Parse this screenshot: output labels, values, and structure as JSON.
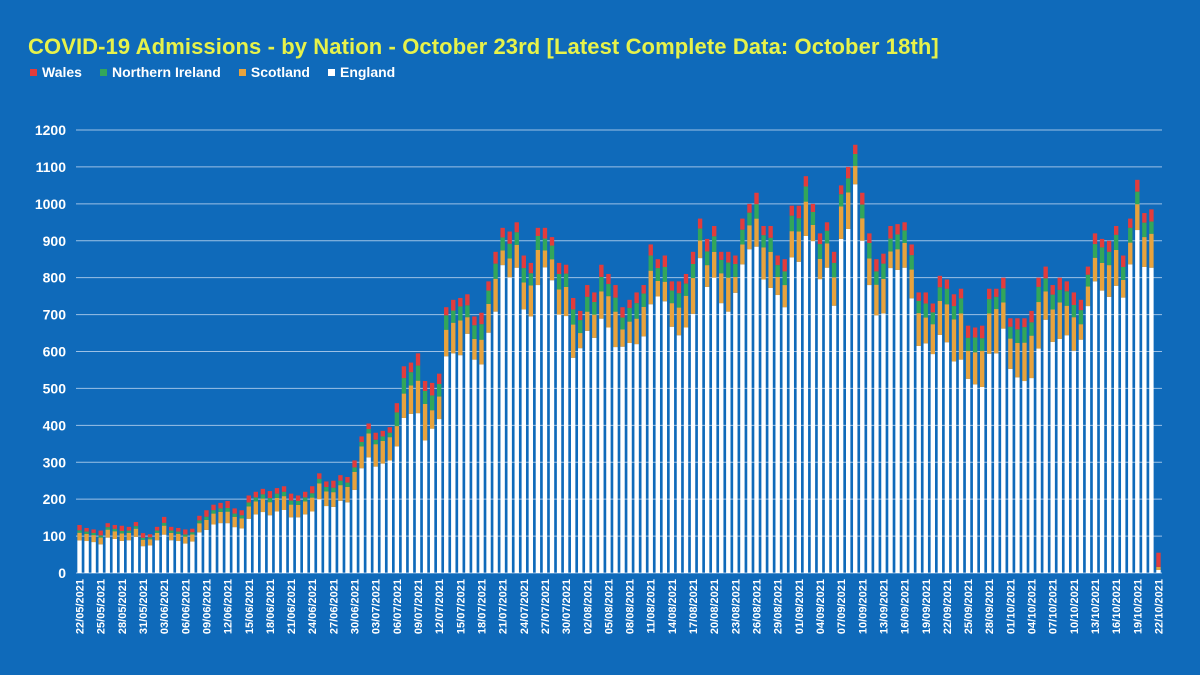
{
  "chart_data": {
    "type": "bar",
    "stacked": true,
    "title": "COVID-19 Admissions - by Nation - October 23rd [Latest Complete Data: October 18th]",
    "legend_position": "top-left",
    "grid": true,
    "ylim": [
      0,
      1200
    ],
    "yticks": [
      0,
      100,
      200,
      300,
      400,
      500,
      600,
      700,
      800,
      900,
      1000,
      1100,
      1200
    ],
    "colors": {
      "England": "#ffffff",
      "Scotland": "#e8a33d",
      "Northern Ireland": "#33a65a",
      "Wales": "#e23c3c"
    },
    "x": [
      "22/05/2021",
      "23/05/2021",
      "24/05/2021",
      "25/05/2021",
      "26/05/2021",
      "27/05/2021",
      "28/05/2021",
      "29/05/2021",
      "30/05/2021",
      "31/05/2021",
      "01/06/2021",
      "02/06/2021",
      "03/06/2021",
      "04/06/2021",
      "05/06/2021",
      "06/06/2021",
      "07/06/2021",
      "08/06/2021",
      "09/06/2021",
      "10/06/2021",
      "11/06/2021",
      "12/06/2021",
      "13/06/2021",
      "14/06/2021",
      "15/06/2021",
      "16/06/2021",
      "17/06/2021",
      "18/06/2021",
      "19/06/2021",
      "20/06/2021",
      "21/06/2021",
      "22/06/2021",
      "23/06/2021",
      "24/06/2021",
      "25/06/2021",
      "26/06/2021",
      "27/06/2021",
      "28/06/2021",
      "29/06/2021",
      "30/06/2021",
      "01/07/2021",
      "02/07/2021",
      "03/07/2021",
      "04/07/2021",
      "05/07/2021",
      "06/07/2021",
      "07/07/2021",
      "08/07/2021",
      "09/07/2021",
      "10/07/2021",
      "11/07/2021",
      "12/07/2021",
      "13/07/2021",
      "14/07/2021",
      "15/07/2021",
      "16/07/2021",
      "17/07/2021",
      "18/07/2021",
      "19/07/2021",
      "20/07/2021",
      "21/07/2021",
      "22/07/2021",
      "23/07/2021",
      "24/07/2021",
      "25/07/2021",
      "26/07/2021",
      "27/07/2021",
      "28/07/2021",
      "29/07/2021",
      "30/07/2021",
      "31/07/2021",
      "01/08/2021",
      "02/08/2021",
      "03/08/2021",
      "04/08/2021",
      "05/08/2021",
      "06/08/2021",
      "07/08/2021",
      "08/08/2021",
      "09/08/2021",
      "10/08/2021",
      "11/08/2021",
      "12/08/2021",
      "13/08/2021",
      "14/08/2021",
      "15/08/2021",
      "16/08/2021",
      "17/08/2021",
      "18/08/2021",
      "19/08/2021",
      "20/08/2021",
      "21/08/2021",
      "22/08/2021",
      "23/08/2021",
      "24/08/2021",
      "25/08/2021",
      "26/08/2021",
      "27/08/2021",
      "28/08/2021",
      "29/08/2021",
      "30/08/2021",
      "31/08/2021",
      "01/09/2021",
      "02/09/2021",
      "03/09/2021",
      "04/09/2021",
      "05/09/2021",
      "06/09/2021",
      "07/09/2021",
      "08/09/2021",
      "09/09/2021",
      "10/09/2021",
      "11/09/2021",
      "12/09/2021",
      "13/09/2021",
      "14/09/2021",
      "15/09/2021",
      "16/09/2021",
      "17/09/2021",
      "18/09/2021",
      "19/09/2021",
      "20/09/2021",
      "21/09/2021",
      "22/09/2021",
      "23/09/2021",
      "24/09/2021",
      "25/09/2021",
      "26/09/2021",
      "27/09/2021",
      "28/09/2021",
      "29/09/2021",
      "30/09/2021",
      "01/10/2021",
      "02/10/2021",
      "03/10/2021",
      "04/10/2021",
      "05/10/2021",
      "06/10/2021",
      "07/10/2021",
      "08/10/2021",
      "09/10/2021",
      "10/10/2021",
      "11/10/2021",
      "12/10/2021",
      "13/10/2021",
      "14/10/2021",
      "15/10/2021",
      "16/10/2021",
      "17/10/2021",
      "18/10/2021",
      "19/10/2021",
      "20/10/2021",
      "21/10/2021",
      "22/10/2021"
    ],
    "x_tick_labels": [
      "22/05/2021",
      "25/05/2021",
      "28/05/2021",
      "31/05/2021",
      "03/06/2021",
      "06/06/2021",
      "09/06/2021",
      "12/06/2021",
      "15/06/2021",
      "18/06/2021",
      "21/06/2021",
      "24/06/2021",
      "27/06/2021",
      "30/06/2021",
      "03/07/2021",
      "06/07/2021",
      "09/07/2021",
      "12/07/2021",
      "15/07/2021",
      "18/07/2021",
      "21/07/2021",
      "24/07/2021",
      "27/07/2021",
      "30/07/2021",
      "02/08/2021",
      "05/08/2021",
      "08/08/2021",
      "11/08/2021",
      "14/08/2021",
      "17/08/2021",
      "20/08/2021",
      "23/08/2021",
      "26/08/2021",
      "29/08/2021",
      "01/09/2021",
      "04/09/2021",
      "07/09/2021",
      "10/09/2021",
      "13/09/2021",
      "16/09/2021",
      "19/09/2021",
      "22/09/2021",
      "25/09/2021",
      "28/09/2021",
      "01/10/2021",
      "04/10/2021",
      "07/10/2021",
      "10/10/2021",
      "13/10/2021",
      "16/10/2021",
      "19/10/2021",
      "22/10/2021"
    ],
    "totals": [
      130,
      122,
      118,
      115,
      135,
      130,
      128,
      125,
      138,
      108,
      105,
      125,
      152,
      125,
      122,
      118,
      120,
      155,
      170,
      185,
      190,
      195,
      175,
      170,
      210,
      220,
      228,
      222,
      230,
      235,
      215,
      210,
      220,
      235,
      270,
      248,
      250,
      265,
      260,
      305,
      370,
      405,
      380,
      385,
      395,
      460,
      560,
      570,
      595,
      520,
      515,
      540,
      720,
      740,
      745,
      755,
      695,
      705,
      790,
      870,
      935,
      925,
      950,
      860,
      840,
      935,
      935,
      910,
      840,
      835,
      745,
      710,
      780,
      760,
      835,
      810,
      780,
      720,
      740,
      760,
      780,
      890,
      850,
      860,
      790,
      790,
      810,
      870,
      960,
      905,
      940,
      870,
      870,
      860,
      960,
      1000,
      1030,
      940,
      940,
      860,
      850,
      995,
      995,
      1075,
      1000,
      920,
      950,
      870,
      1050,
      1100,
      1160,
      1030,
      920,
      850,
      865,
      940,
      945,
      950,
      890,
      760,
      760,
      730,
      805,
      795,
      755,
      770,
      670,
      665,
      670,
      770,
      770,
      800,
      690,
      690,
      690,
      710,
      800,
      830,
      780,
      800,
      790,
      760,
      740,
      830,
      920,
      905,
      900,
      940,
      860,
      960,
      1065,
      975,
      985,
      55
    ]
  },
  "legend": [
    {
      "name": "Wales",
      "color": "#e23c3c"
    },
    {
      "name": "Northern Ireland",
      "color": "#33a65a"
    },
    {
      "name": "Scotland",
      "color": "#e8a33d"
    },
    {
      "name": "England",
      "color": "#ffffff"
    }
  ]
}
